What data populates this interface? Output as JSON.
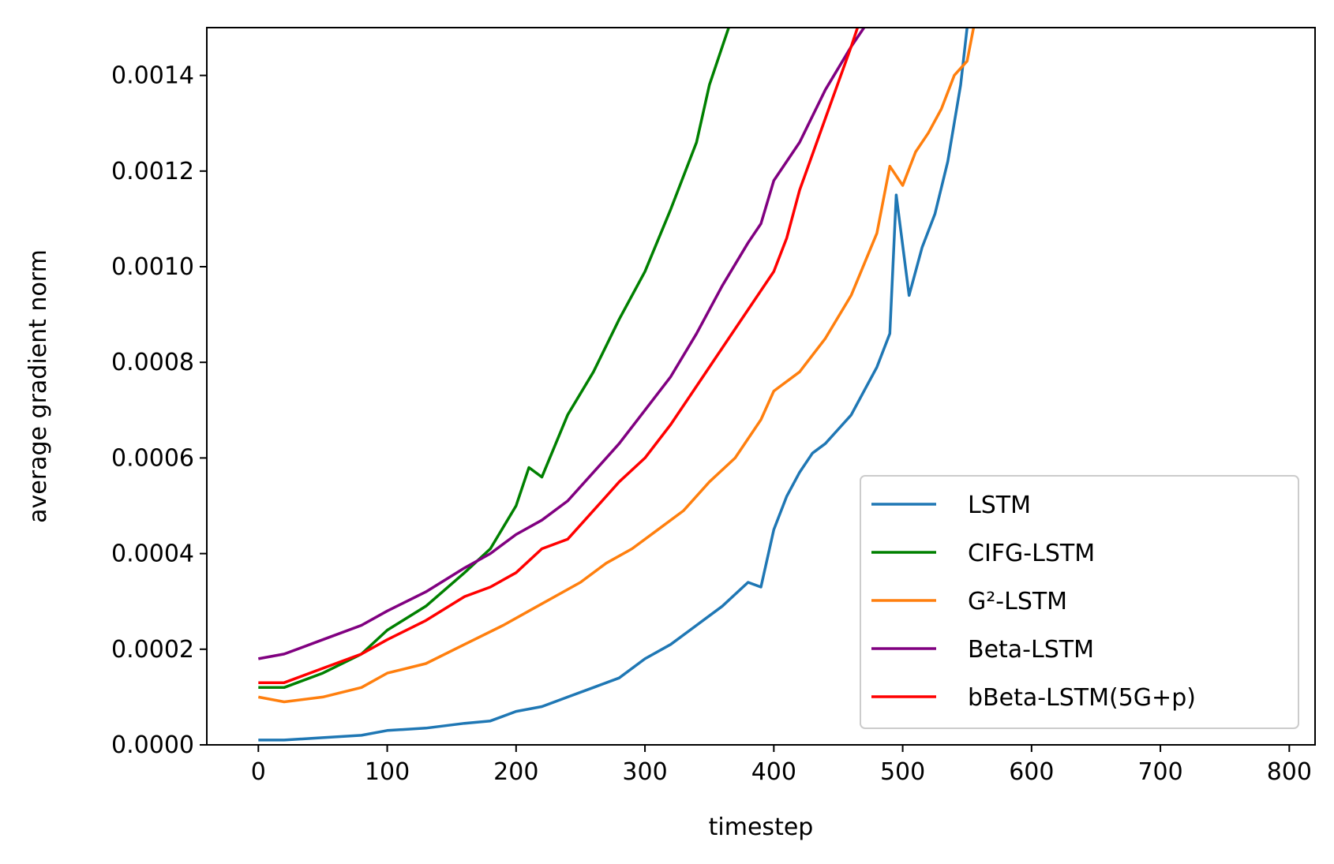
{
  "chart_data": {
    "type": "line",
    "title": "",
    "xlabel": "timestep",
    "ylabel": "average gradient norm",
    "xlim": [
      -40,
      820
    ],
    "ylim": [
      0,
      0.0015
    ],
    "xticks": [
      0,
      100,
      200,
      300,
      400,
      500,
      600,
      700,
      800
    ],
    "yticks": [
      0,
      0.0002,
      0.0004,
      0.0006,
      0.0008,
      0.001,
      0.0012,
      0.0014
    ],
    "xtick_labels": [
      "0",
      "100",
      "200",
      "300",
      "400",
      "500",
      "600",
      "700",
      "800"
    ],
    "ytick_labels": [
      "0.0000",
      "0.0002",
      "0.0004",
      "0.0006",
      "0.0008",
      "0.0010",
      "0.0012",
      "0.0014"
    ],
    "grid": false,
    "legend_position": "lower-right",
    "series": [
      {
        "name": "LSTM",
        "color": "#1f77b4",
        "x": [
          0,
          20,
          50,
          80,
          100,
          130,
          160,
          180,
          200,
          220,
          240,
          260,
          280,
          300,
          320,
          340,
          360,
          380,
          390,
          400,
          410,
          420,
          430,
          440,
          450,
          460,
          470,
          480,
          490,
          495,
          505,
          515,
          525,
          535,
          545,
          550
        ],
        "y": [
          1e-05,
          1e-05,
          1.5e-05,
          2e-05,
          3e-05,
          3.5e-05,
          4.5e-05,
          5e-05,
          7e-05,
          8e-05,
          0.0001,
          0.00012,
          0.00014,
          0.00018,
          0.00021,
          0.00025,
          0.00029,
          0.00034,
          0.00033,
          0.00045,
          0.00052,
          0.00057,
          0.00061,
          0.00063,
          0.00066,
          0.00069,
          0.00074,
          0.00079,
          0.00086,
          0.00115,
          0.00094,
          0.00104,
          0.00111,
          0.00122,
          0.00138,
          0.0015
        ]
      },
      {
        "name": "CIFG-LSTM",
        "color": "#008000",
        "x": [
          0,
          20,
          50,
          80,
          100,
          130,
          160,
          180,
          200,
          210,
          220,
          240,
          260,
          280,
          300,
          320,
          340,
          350,
          360,
          365
        ],
        "y": [
          0.00012,
          0.00012,
          0.00015,
          0.00019,
          0.00024,
          0.00029,
          0.00036,
          0.00041,
          0.0005,
          0.00058,
          0.00056,
          0.00069,
          0.00078,
          0.00089,
          0.00099,
          0.00112,
          0.00126,
          0.00138,
          0.00146,
          0.0015
        ]
      },
      {
        "name": "G²-LSTM",
        "color": "#ff7f0e",
        "x": [
          0,
          20,
          50,
          80,
          100,
          130,
          160,
          190,
          210,
          230,
          250,
          270,
          290,
          310,
          330,
          350,
          370,
          390,
          400,
          420,
          440,
          460,
          480,
          490,
          500,
          510,
          520,
          530,
          540,
          550,
          555
        ],
        "y": [
          0.0001,
          9e-05,
          0.0001,
          0.00012,
          0.00015,
          0.00017,
          0.00021,
          0.00025,
          0.00028,
          0.00031,
          0.00034,
          0.00038,
          0.00041,
          0.00045,
          0.00049,
          0.00055,
          0.0006,
          0.00068,
          0.00074,
          0.00078,
          0.00085,
          0.00094,
          0.00107,
          0.00121,
          0.00117,
          0.00124,
          0.00128,
          0.00133,
          0.0014,
          0.00143,
          0.0015
        ]
      },
      {
        "name": "Beta-LSTM",
        "color": "#800080",
        "x": [
          0,
          20,
          50,
          80,
          100,
          130,
          160,
          180,
          200,
          220,
          240,
          260,
          280,
          300,
          320,
          340,
          360,
          380,
          390,
          400,
          420,
          440,
          460,
          470
        ],
        "y": [
          0.00018,
          0.00019,
          0.00022,
          0.00025,
          0.00028,
          0.00032,
          0.00037,
          0.0004,
          0.00044,
          0.00047,
          0.00051,
          0.00057,
          0.00063,
          0.0007,
          0.00077,
          0.00086,
          0.00096,
          0.00105,
          0.00109,
          0.00118,
          0.00126,
          0.00137,
          0.00146,
          0.0015
        ]
      },
      {
        "name": "bBeta-LSTM(5G+p)",
        "color": "#ff0000",
        "x": [
          0,
          20,
          50,
          80,
          100,
          130,
          160,
          180,
          200,
          220,
          240,
          260,
          280,
          300,
          320,
          340,
          360,
          380,
          400,
          410,
          420,
          440,
          460,
          465
        ],
        "y": [
          0.00013,
          0.00013,
          0.00016,
          0.00019,
          0.00022,
          0.00026,
          0.00031,
          0.00033,
          0.00036,
          0.00041,
          0.00043,
          0.00049,
          0.00055,
          0.0006,
          0.00067,
          0.00075,
          0.00083,
          0.00091,
          0.00099,
          0.00106,
          0.00116,
          0.00131,
          0.00146,
          0.0015
        ]
      }
    ]
  }
}
